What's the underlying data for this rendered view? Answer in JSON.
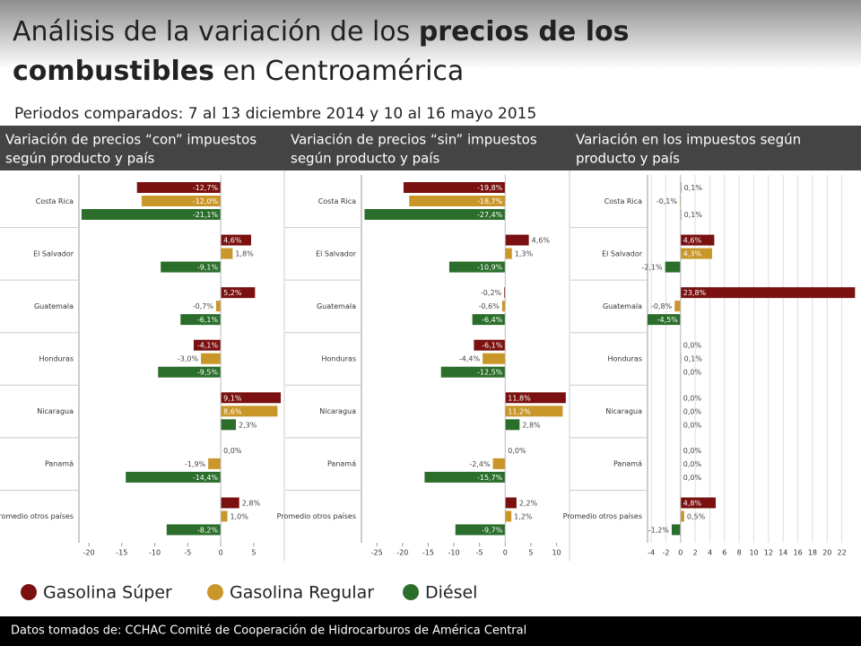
{
  "header": {
    "title_lines": [
      [
        {
          "text": "Análisis de la variación de los ",
          "bold": false
        },
        {
          "text": "precios de los",
          "bold": true
        }
      ],
      [
        {
          "text": "combustibles",
          "bold": true
        },
        {
          "text": " en Centroamérica",
          "bold": false
        }
      ]
    ],
    "subtitle": "Periodos comparados:  7 al 13 diciembre 2014 y 10 al 16 mayo 2015"
  },
  "legend": [
    {
      "name": "Gasolina Súper",
      "color": "#7a1010"
    },
    {
      "name": "Gasolina Regular",
      "color": "#c9962a"
    },
    {
      "name": "Diésel",
      "color": "#2b6e2b"
    }
  ],
  "footer": "Datos tomados de: CCHAC Comité de Cooperación de Hidrocarburos de América Central",
  "chart_data": [
    {
      "type": "bar",
      "title_lines": [
        "Variación de precios “con” impuestos",
        "según producto y país"
      ],
      "categories": [
        "Costa Rica",
        "El Salvador",
        "Guatemala",
        "Honduras",
        "Nicaragua",
        "Panamá",
        "Promedio otros países"
      ],
      "series": [
        {
          "color": "#7a1010",
          "values": [
            -12.7,
            4.6,
            5.2,
            -4.1,
            9.1,
            0.0,
            2.8
          ],
          "value_labels": [
            "-12,7%",
            "4,6%",
            "5,2%",
            "-4,1%",
            "9,1%",
            "0,0%",
            "2,8%"
          ]
        },
        {
          "color": "#c9962a",
          "values": [
            -12.0,
            1.8,
            -0.7,
            -3.0,
            8.6,
            -1.9,
            1.0
          ],
          "value_labels": [
            "-12,0%",
            "1,8%",
            "-0,7%",
            "-3,0%",
            "8,6%",
            "-1,9%",
            "1,0%"
          ]
        },
        {
          "color": "#2b6e2b",
          "values": [
            -21.1,
            -9.1,
            -6.1,
            -9.5,
            2.3,
            -14.4,
            -8.2
          ],
          "value_labels": [
            "-21,1%",
            "-9,1%",
            "-6,1%",
            "-9,5%",
            "2,3%",
            "-14,4%",
            "-8,2%"
          ]
        }
      ],
      "xlim": [
        -21.5,
        9.5
      ],
      "xticks": [
        -20,
        -15,
        -10,
        -5,
        0,
        5
      ],
      "grid": false
    },
    {
      "type": "bar",
      "title_lines": [
        "Variación de precios “sin” impuestos",
        "según producto y país"
      ],
      "categories": [
        "Costa Rica",
        "El Salvador",
        "Guatemala",
        "Honduras",
        "Nicaragua",
        "Panamá",
        "Promedio otros países"
      ],
      "series": [
        {
          "color": "#7a1010",
          "values": [
            -19.8,
            4.6,
            -0.2,
            -6.1,
            11.8,
            0.0,
            2.2
          ],
          "value_labels": [
            "-19,8%",
            "4,6%",
            "-0,2%",
            "-6,1%",
            "11,8%",
            "0,0%",
            "2,2%"
          ]
        },
        {
          "color": "#c9962a",
          "values": [
            -18.7,
            1.3,
            -0.6,
            -4.4,
            11.2,
            -2.4,
            1.2
          ],
          "value_labels": [
            "-18,7%",
            "1,3%",
            "-0,6%",
            "-4,4%",
            "11,2%",
            "-2,4%",
            "1,2%"
          ]
        },
        {
          "color": "#2b6e2b",
          "values": [
            -27.4,
            -10.9,
            -6.4,
            -12.5,
            2.8,
            -15.7,
            -9.7
          ],
          "value_labels": [
            "-27,4%",
            "-10,9%",
            "-6,4%",
            "-12,5%",
            "2,8%",
            "-15,7%",
            "-9,7%"
          ]
        }
      ],
      "xlim": [
        -28,
        12
      ],
      "xticks": [
        -25,
        -20,
        -15,
        -10,
        -5,
        0,
        5,
        10
      ],
      "grid": false
    },
    {
      "type": "bar",
      "title_lines": [
        "Variación en los impuestos según",
        "producto y país"
      ],
      "categories": [
        "Costa Rica",
        "El Salvador",
        "Guatemala",
        "Honduras",
        "Nicaragua",
        "Panamá",
        "Promedio otros países"
      ],
      "series": [
        {
          "color": "#7a1010",
          "values": [
            0.1,
            4.6,
            23.8,
            0.0,
            0.0,
            0.0,
            4.8
          ],
          "value_labels": [
            "0,1%",
            "4,6%",
            "23,8%",
            "0,0%",
            "0,0%",
            "0,0%",
            "4,8%"
          ]
        },
        {
          "color": "#c9962a",
          "values": [
            -0.1,
            4.3,
            -0.8,
            0.1,
            0.0,
            0.0,
            0.5
          ],
          "value_labels": [
            "-0,1%",
            "4,3%",
            "-0,8%",
            "0,1%",
            "0,0%",
            "0,0%",
            "0,5%"
          ]
        },
        {
          "color": "#2b6e2b",
          "values": [
            0.1,
            -2.1,
            -4.5,
            0.0,
            0.0,
            0.0,
            -1.2
          ],
          "value_labels": [
            "0,1%",
            "-2,1%",
            "-4,5%",
            "0,0%",
            "0,0%",
            "0,0%",
            "-1,2%"
          ]
        }
      ],
      "xlim": [
        -4.5,
        24
      ],
      "xticks": [
        -4,
        -2,
        0,
        2,
        4,
        6,
        8,
        10,
        12,
        14,
        16,
        18,
        20,
        22
      ],
      "grid": true
    }
  ]
}
